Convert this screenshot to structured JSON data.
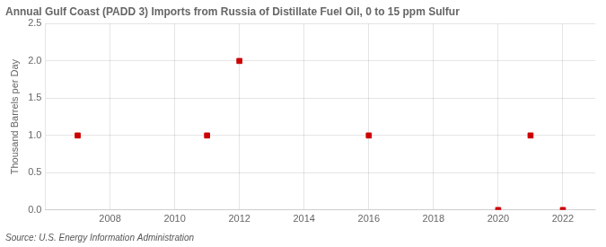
{
  "chart_data": {
    "type": "scatter",
    "title": "Annual Gulf Coast (PADD 3) Imports from Russia of Distillate Fuel Oil, 0 to 15 ppm Sulfur",
    "y_label": "Thousand Barrels per Day",
    "annotations": [
      "Source: U.S. Energy Information Administration"
    ],
    "x": [
      2007,
      2011,
      2012,
      2016,
      2020,
      2021,
      2022
    ],
    "values": [
      1.0,
      1.0,
      2.0,
      1.0,
      0.0,
      1.0,
      0.0
    ],
    "color": "#cc0000",
    "marker": "square",
    "xlim": [
      2006,
      2023
    ],
    "xticks": [
      2008,
      2010,
      2012,
      2014,
      2016,
      2018,
      2020,
      2022
    ],
    "ylim": [
      0,
      2.5
    ],
    "yticks": [
      {
        "value": 0,
        "label": "0.0"
      },
      {
        "value": 0.5,
        "label": "0.5"
      },
      {
        "value": 1,
        "label": "1.0"
      },
      {
        "value": 1.5,
        "label": "1.5"
      },
      {
        "value": 2,
        "label": "2.0"
      },
      {
        "value": 2.5,
        "label": "2.5"
      }
    ],
    "grid": true
  }
}
